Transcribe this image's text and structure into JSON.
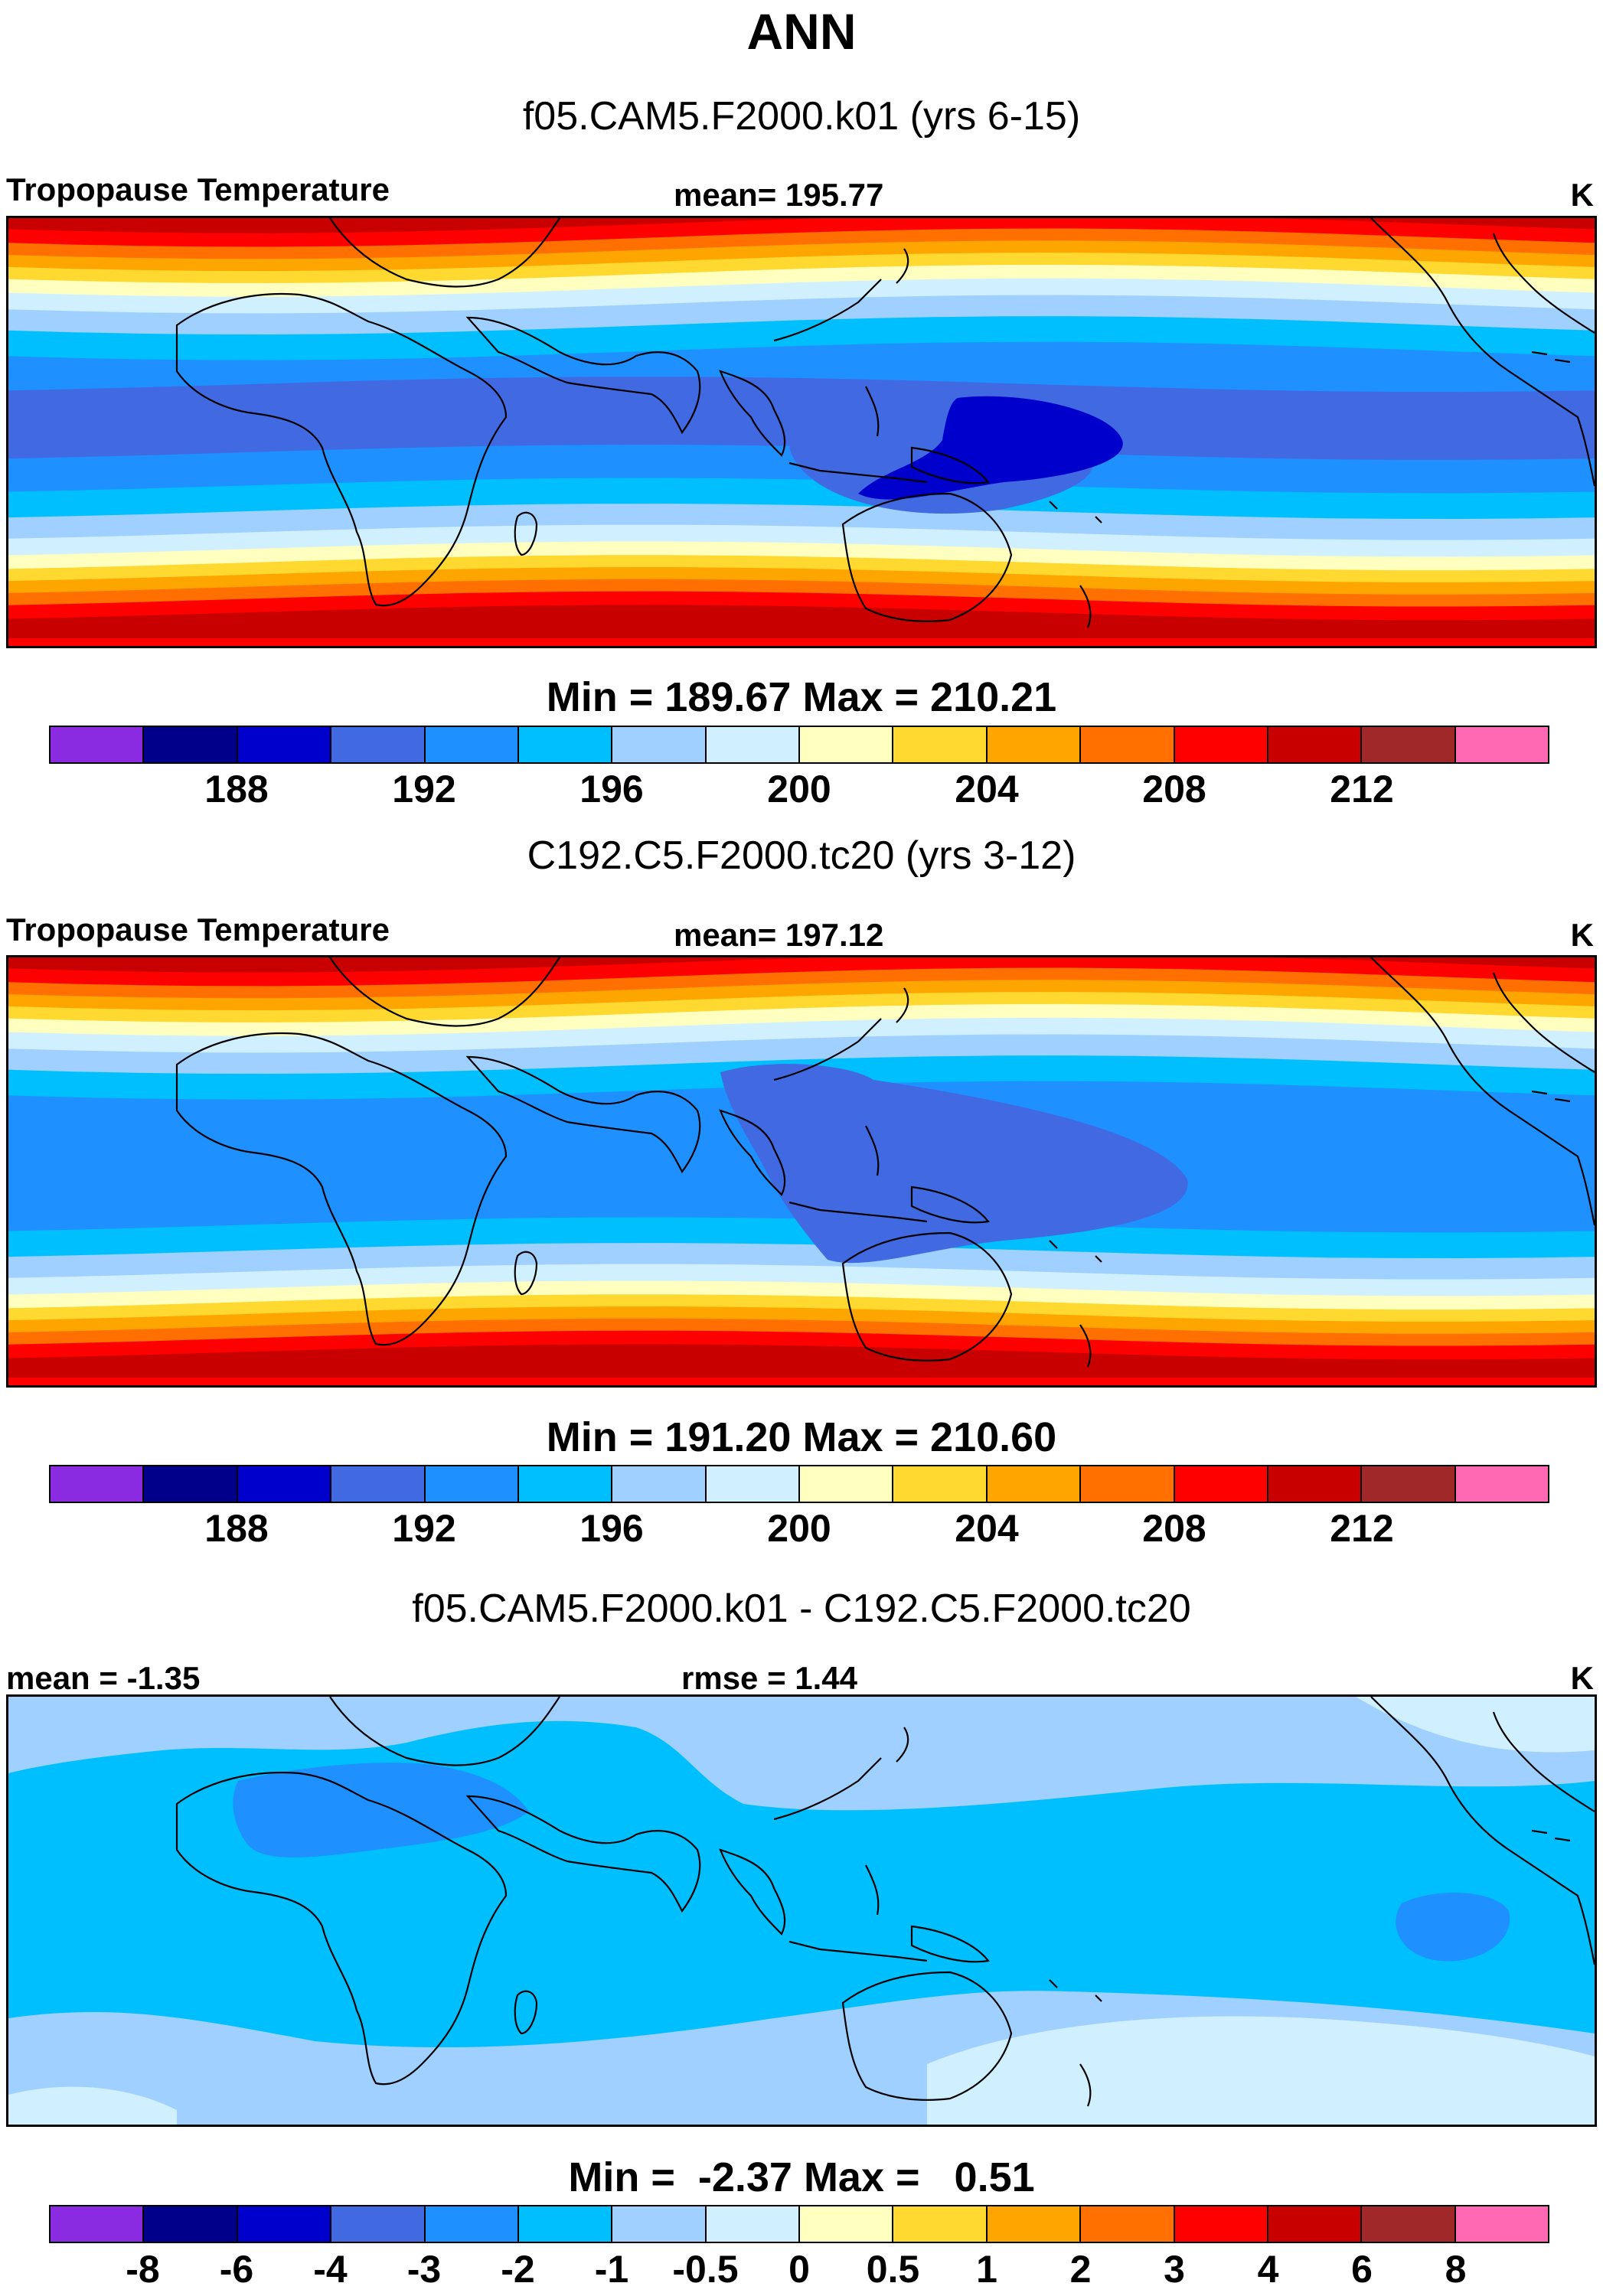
{
  "title": "ANN",
  "chart_data": [
    {
      "type": "heatmap",
      "subtitle": "f05.CAM5.F2000.k01 (yrs 6-15)",
      "left_label": "Tropopause Temperature",
      "center_label": "mean= 195.77",
      "units": "K",
      "mean": 195.77,
      "min": 189.67,
      "max": 210.21,
      "minmax_text": "Min = 189.67 Max = 210.21",
      "colorbar": {
        "colors": [
          "#8a2be2",
          "#00008b",
          "#0000cd",
          "#4169e1",
          "#1e90ff",
          "#00bfff",
          "#a0d0ff",
          "#d0f0ff",
          "#ffffc0",
          "#ffd830",
          "#ffa500",
          "#ff7000",
          "#ff0000",
          "#c80000",
          "#a02828",
          "#ff69b4"
        ],
        "tick_labels": [
          "188",
          "192",
          "196",
          "200",
          "204",
          "208",
          "212"
        ]
      },
      "field": "tropopause_temperature_model"
    },
    {
      "type": "heatmap",
      "subtitle": "C192.C5.F2000.tc20 (yrs 3-12)",
      "left_label": "Tropopause Temperature",
      "center_label": "mean= 197.12",
      "units": "K",
      "mean": 197.12,
      "min": 191.2,
      "max": 210.6,
      "minmax_text": "Min = 191.20 Max = 210.60",
      "colorbar": {
        "colors": [
          "#8a2be2",
          "#00008b",
          "#0000cd",
          "#4169e1",
          "#1e90ff",
          "#00bfff",
          "#a0d0ff",
          "#d0f0ff",
          "#ffffc0",
          "#ffd830",
          "#ffa500",
          "#ff7000",
          "#ff0000",
          "#c80000",
          "#a02828",
          "#ff69b4"
        ],
        "tick_labels": [
          "188",
          "192",
          "196",
          "200",
          "204",
          "208",
          "212"
        ]
      },
      "field": "tropopause_temperature_reference"
    },
    {
      "type": "heatmap",
      "subtitle": "f05.CAM5.F2000.k01 - C192.C5.F2000.tc20",
      "left_label": "mean =  -1.35",
      "center_label": "rmse =   1.44",
      "units": "K",
      "mean": -1.35,
      "rmse": 1.44,
      "min": -2.37,
      "max": 0.51,
      "minmax_text": "Min =  -2.37 Max =   0.51",
      "colorbar": {
        "colors": [
          "#8a2be2",
          "#00008b",
          "#0000cd",
          "#4169e1",
          "#1e90ff",
          "#00bfff",
          "#a0d0ff",
          "#d0f0ff",
          "#ffffc0",
          "#ffd830",
          "#ffa500",
          "#ff7000",
          "#ff0000",
          "#c80000",
          "#a02828",
          "#ff69b4"
        ],
        "tick_labels": [
          "-8",
          "-6",
          "-4",
          "-3",
          "-2",
          "-1",
          "-0.5",
          "0",
          "0.5",
          "1",
          "2",
          "3",
          "4",
          "6",
          "8"
        ]
      },
      "field": "difference"
    }
  ]
}
